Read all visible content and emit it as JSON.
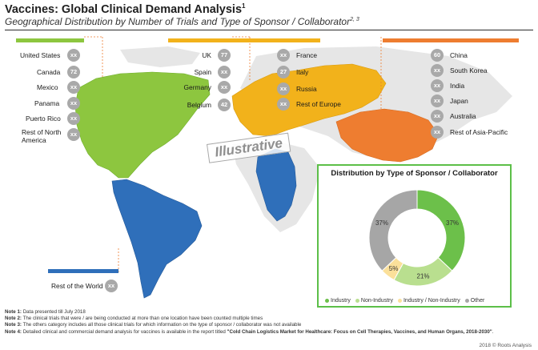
{
  "header": {
    "title": "Vaccines: Global Clinical Demand Analysis",
    "title_sup": "1",
    "subtitle": "Geographical Distribution by Number of Trials and Type of Sponsor / Collaborator",
    "subtitle_sup": "2, 3"
  },
  "watermark": "Illustrative",
  "regions": {
    "americas": {
      "color": "#8dc63f",
      "items": [
        {
          "name": "United States",
          "value": "xx"
        },
        {
          "name": "Canada",
          "value": "72"
        },
        {
          "name": "Mexico",
          "value": "xx"
        },
        {
          "name": "Panama",
          "value": "xx"
        },
        {
          "name": "Puerto Rico",
          "value": "xx"
        },
        {
          "name": "Rest of North America",
          "value": "xx"
        }
      ]
    },
    "europe_left": {
      "color": "#f2b21b",
      "items": [
        {
          "name": "UK",
          "value": "77"
        },
        {
          "name": "Spain",
          "value": "xx"
        },
        {
          "name": "Germany",
          "value": "xx"
        },
        {
          "name": "Belgium",
          "value": "42"
        }
      ]
    },
    "europe_right": {
      "items": [
        {
          "name": "France",
          "value": "xx"
        },
        {
          "name": "Italy",
          "value": "27"
        },
        {
          "name": "Russia",
          "value": "xx"
        },
        {
          "name": "Rest of Europe",
          "value": "xx"
        }
      ]
    },
    "asia": {
      "color": "#ee7d30",
      "items": [
        {
          "name": "China",
          "value": "60"
        },
        {
          "name": "South Korea",
          "value": "xx"
        },
        {
          "name": "India",
          "value": "xx"
        },
        {
          "name": "Japan",
          "value": "xx"
        },
        {
          "name": "Australia",
          "value": "xx"
        },
        {
          "name": "Rest of Asia-Pacific",
          "value": "xx"
        }
      ]
    },
    "rest_of_world": {
      "color": "#2f6fba",
      "name": "Rest of the World",
      "value": "xx"
    }
  },
  "chart_data": {
    "type": "pie",
    "title": "Distribution by Type of Sponsor / Collaborator",
    "donut": true,
    "slices": [
      {
        "label": "Industry",
        "value": 37,
        "text": "37%",
        "color": "#6cc04a"
      },
      {
        "label": "Non-Industry",
        "value": 21,
        "text": "21%",
        "color": "#b9df8f"
      },
      {
        "label": "Industry / Non-Industry",
        "value": 5,
        "text": "5%",
        "color": "#fbe09a"
      },
      {
        "label": "Other",
        "value": 37,
        "text": "37%",
        "color": "#a6a6a6"
      }
    ],
    "legend_position": "bottom"
  },
  "notes": [
    {
      "label": "Note 1:",
      "text": " Data presented till July 2018"
    },
    {
      "label": "Note 2:",
      "text": " The clinical trials that were / are being conducted at more than one location have been counted multiple times"
    },
    {
      "label": "Note 3:",
      "text": " The others category includes all those clinical trials for which information on the type of sponsor / collaborator was not available"
    },
    {
      "label": "Note 4:",
      "text": " Detailed clinical and commercial demand analysis for vaccines is available in the report titled ",
      "bold": "\"Cold Chain Logistics Market for Healthcare: Focus on Cell Therapies, Vaccines, and Human Organs, 2018-2030\"",
      "tail": "."
    }
  ],
  "copyright": "2018 © Roots Analysis"
}
